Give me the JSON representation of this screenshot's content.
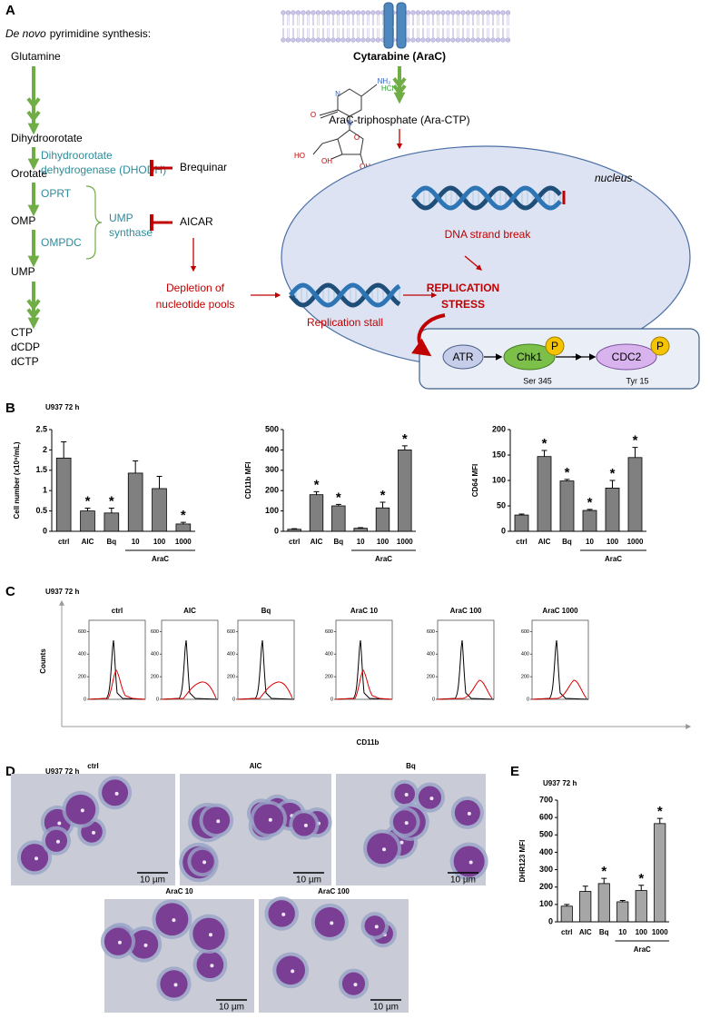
{
  "panel_a": {
    "label": "A",
    "heading_italic": "De novo",
    "heading": "pyrimidine synthesis:",
    "pathway": [
      "Glutamine",
      "Dihydroorotate",
      "Orotate",
      "OMP",
      "UMP",
      "CTP",
      "dCDP",
      "dCTP"
    ],
    "enzymes": [
      "Dihydroorotate",
      "dehydrogenase (DHODH)",
      "OPRT",
      "OMPDC",
      "UMP",
      "synthase"
    ],
    "inhibitors": [
      "Brequinar",
      "AICAR"
    ],
    "depletion": [
      "Depletion of",
      "nucleotide pools"
    ],
    "drug": "Cytarabine (AraC)",
    "molecule_atoms": [
      "NH₂",
      "N",
      "O",
      "N",
      "O",
      "HO",
      "OH",
      "OH"
    ],
    "salt": "HCl",
    "metabolite": "AraC-triphosphate (Ara-CTP)",
    "nucleus": "nucleus",
    "dna_break": "DNA strand break",
    "stall": "Replication stall",
    "stress": [
      "REPLICATION",
      "STRESS"
    ],
    "kinases": [
      "ATR",
      "Chk1",
      "CDC2"
    ],
    "phospho": [
      "P",
      "P"
    ],
    "sites": [
      "Ser 345",
      "Tyr 15"
    ]
  },
  "panel_b": {
    "label": "B",
    "subtitle": "U937 72 h"
  },
  "chart_data": [
    {
      "type": "bar",
      "ylabel": "Cell number (x10⁶/mL)",
      "categories": [
        "ctrl",
        "AIC",
        "Bq",
        "10",
        "100",
        "1000"
      ],
      "group_label": "AraC",
      "values": [
        1.8,
        0.5,
        0.45,
        1.43,
        1.05,
        0.18
      ],
      "errors": [
        0.4,
        0.07,
        0.12,
        0.3,
        0.3,
        0.04
      ],
      "significance": [
        null,
        "*",
        "*",
        null,
        null,
        "*"
      ],
      "color": "#808080",
      "ylim": [
        0,
        2.5
      ],
      "yticks": [
        0,
        0.5,
        1,
        1.5,
        2,
        2.5
      ]
    },
    {
      "type": "bar",
      "ylabel": "CD11b MFI",
      "categories": [
        "ctrl",
        "AIC",
        "Bq",
        "10",
        "100",
        "1000"
      ],
      "group_label": "AraC",
      "values": [
        10,
        180,
        125,
        15,
        115,
        400
      ],
      "errors": [
        3,
        15,
        7,
        3,
        28,
        20
      ],
      "significance": [
        null,
        "*",
        "*",
        null,
        "*",
        "*"
      ],
      "color": "#808080",
      "ylim": [
        0,
        500
      ],
      "yticks": [
        0,
        100,
        200,
        300,
        400,
        500
      ]
    },
    {
      "type": "bar",
      "ylabel": "CD64 MFI",
      "categories": [
        "ctrl",
        "AIC",
        "Bq",
        "10",
        "100",
        "1000"
      ],
      "group_label": "AraC",
      "values": [
        32,
        147,
        99,
        41,
        85,
        145
      ],
      "errors": [
        2,
        12,
        3,
        2,
        15,
        20
      ],
      "significance": [
        null,
        "*",
        "*",
        "*",
        "*",
        "*"
      ],
      "color": "#808080",
      "ylim": [
        0,
        200
      ],
      "yticks": [
        0,
        50,
        100,
        150,
        200
      ]
    },
    {
      "type": "bar",
      "ylabel": "DHR123 MFI",
      "categories": [
        "ctrl",
        "AIC",
        "Bq",
        "10",
        "100",
        "1000"
      ],
      "group_label": "AraC",
      "values": [
        90,
        175,
        220,
        115,
        180,
        565
      ],
      "errors": [
        10,
        30,
        30,
        8,
        30,
        30
      ],
      "significance": [
        null,
        null,
        "*",
        null,
        "*",
        "*"
      ],
      "color": "#a6a6a6",
      "ylim": [
        0,
        700
      ],
      "yticks": [
        0,
        100,
        200,
        300,
        400,
        500,
        600,
        700
      ]
    }
  ],
  "panel_c": {
    "label": "C",
    "subtitle": "U937 72 h",
    "ylabel": "Counts",
    "xlabel": "CD11b",
    "plots": [
      "ctrl",
      "AIC",
      "Bq",
      "AraC 10",
      "AraC 100",
      "AraC 1000"
    ],
    "ylim": [
      0,
      700
    ],
    "yticks": [
      0,
      200,
      400,
      600
    ]
  },
  "panel_d": {
    "label": "D",
    "subtitle": "U937 72 h",
    "images": [
      {
        "title": "ctrl",
        "scale": "10 µm"
      },
      {
        "title": "AIC",
        "scale": "10 µm"
      },
      {
        "title": "Bq",
        "scale": "10 µm"
      },
      {
        "title": "AraC 10",
        "scale": "10 µm"
      },
      {
        "title": "AraC 100",
        "scale": "10 µm"
      }
    ]
  },
  "panel_e": {
    "label": "E",
    "subtitle": "U937 72 h"
  }
}
